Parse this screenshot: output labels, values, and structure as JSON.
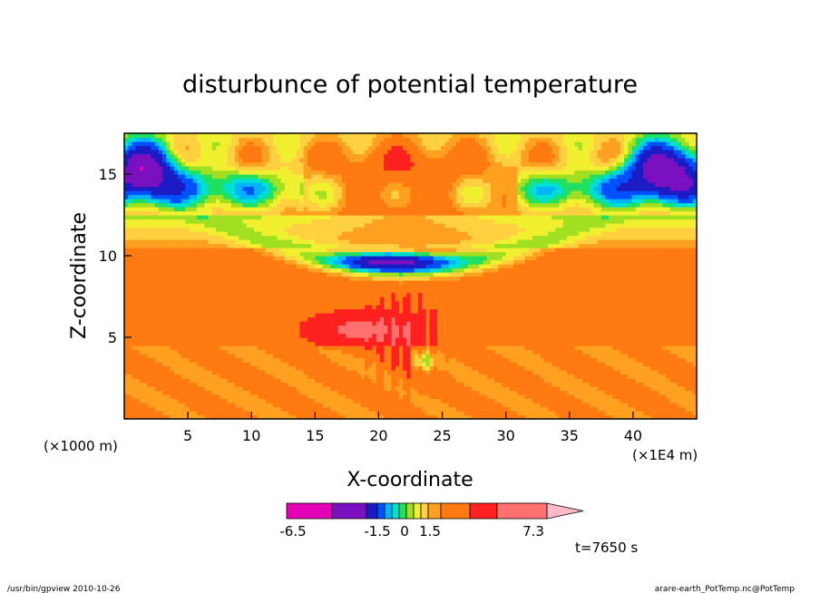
{
  "chart_data": {
    "type": "heatmap",
    "title": "disturbunce of potential temperature",
    "xlabel": "X-coordinate",
    "ylabel": "Z-coordinate",
    "x_unit_left": "(×1000 m)",
    "x_unit_right": "(×1E4 m)",
    "xlim": [
      0,
      45
    ],
    "ylim": [
      0,
      17.5
    ],
    "x_ticks": [
      5,
      10,
      15,
      20,
      25,
      30,
      35,
      40
    ],
    "y_ticks": [
      5,
      10,
      15
    ],
    "colorbar": {
      "colors": [
        "#e400b4",
        "#7a10c0",
        "#1c1cc4",
        "#0050ff",
        "#00b4ff",
        "#00e0d0",
        "#20e060",
        "#a0e020",
        "#f0f030",
        "#ffd040",
        "#ffa020",
        "#ff7a10",
        "#ff2020",
        "#ff7070",
        "#ffb8c8"
      ],
      "labels": [
        "-6.5",
        "-1.5",
        "0",
        "1.5",
        "7.3"
      ]
    },
    "time_label": "t=7650 s",
    "grid": false
  },
  "footer": {
    "left": "/usr/bin/gpview   2010-10-26",
    "right": "arare-earth_PotTemp.nc@PotTemp"
  }
}
